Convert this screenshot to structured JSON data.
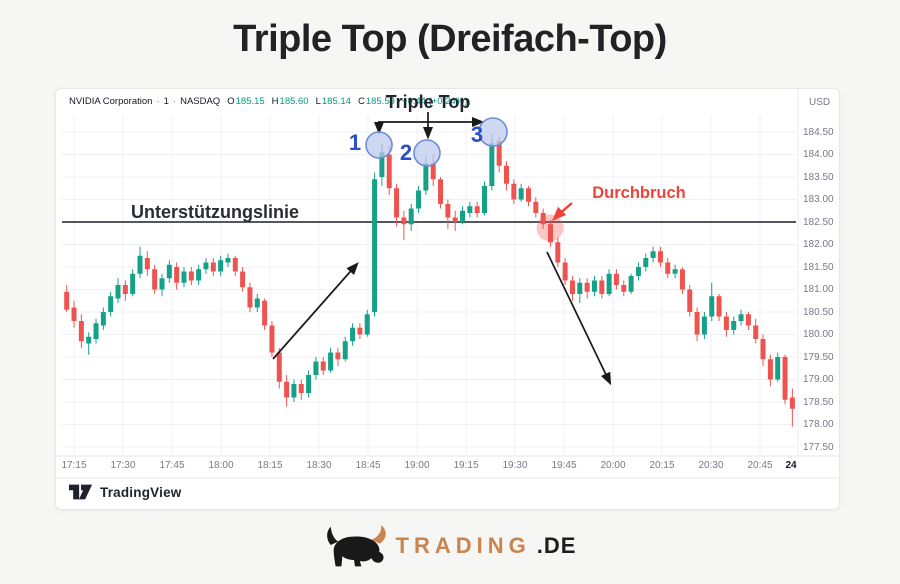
{
  "page": {
    "title": "Triple Top (Dreifach-Top)"
  },
  "chart": {
    "legend": {
      "symbol": "NVIDIA Corporation",
      "separator": "·",
      "interval": "1",
      "exchange": "NASDAQ",
      "open_label": "O",
      "open": "185.15",
      "high_label": "H",
      "high": "185.60",
      "low_label": "L",
      "low": "185.14",
      "close_label": "C",
      "close": "185.59",
      "change": "+0.44 (+0.24%)"
    },
    "price_axis_currency": "USD",
    "annotations": {
      "support": "Unterstützungslinie",
      "pattern": "Triple Top",
      "breakout": "Durchbruch",
      "peaks": [
        "1",
        "2",
        "3"
      ]
    },
    "attribution": "TradingView"
  },
  "footer": {
    "brand": "TRADING",
    "brand_tld": ".DE"
  },
  "colors": {
    "up": "#15a188",
    "down": "#ef5350",
    "support_line": "#3c3f46",
    "grid": "#eef0f3",
    "divider": "#e4e6ea",
    "axis_text": "#787b86",
    "arrow_black": "#1a1a1a",
    "breakout_red": "#ee443b",
    "peak_blue": "#2b4fc4",
    "circle_fill": "#bcc9ee",
    "circle_stroke": "#6d8cd9"
  },
  "chart_data": {
    "type": "candlestick",
    "title": "Triple Top (Dreifach-Top)",
    "instrument": "NVIDIA Corporation",
    "interval": "1",
    "exchange": "NASDAQ",
    "currency": "USD",
    "last_ohlc": {
      "open": 185.15,
      "high": 185.6,
      "low": 185.14,
      "close": 185.59,
      "change": "+0.44 (+0.24%)"
    },
    "support_level": 182.5,
    "grid": true,
    "ylim": [
      177.4,
      185.35
    ],
    "price_axis_labels": [
      "184.50",
      "184.00",
      "183.50",
      "183.00",
      "182.50",
      "182.00",
      "181.50",
      "181.00",
      "180.50",
      "180.00",
      "179.50",
      "179.00",
      "178.50",
      "178.00",
      "177.50"
    ],
    "time_axis_labels": [
      "17:15",
      "17:30",
      "17:45",
      "18:00",
      "18:15",
      "18:30",
      "18:45",
      "19:00",
      "19:15",
      "19:30",
      "19:45",
      "20:00",
      "20:15",
      "20:30",
      "20:45",
      "24"
    ],
    "annotated_peaks": [
      {
        "label": "1",
        "price": 184.25
      },
      {
        "label": "2",
        "price": 183.95
      },
      {
        "label": "3",
        "price": 184.45
      }
    ],
    "breakout_price": 182.4,
    "candles_ohlc": [
      [
        180.95,
        181.1,
        180.5,
        180.55
      ],
      [
        180.6,
        180.75,
        180.15,
        180.3
      ],
      [
        180.3,
        180.45,
        179.7,
        179.85
      ],
      [
        179.8,
        180.05,
        179.55,
        179.95
      ],
      [
        179.9,
        180.35,
        179.8,
        180.25
      ],
      [
        180.2,
        180.6,
        180.1,
        180.5
      ],
      [
        180.5,
        180.95,
        180.4,
        180.85
      ],
      [
        180.8,
        181.25,
        180.7,
        181.1
      ],
      [
        181.1,
        181.2,
        180.75,
        180.9
      ],
      [
        180.9,
        181.45,
        180.85,
        181.35
      ],
      [
        181.35,
        181.95,
        181.25,
        181.75
      ],
      [
        181.7,
        181.85,
        181.3,
        181.45
      ],
      [
        181.45,
        181.55,
        180.9,
        181.0
      ],
      [
        181.0,
        181.35,
        180.85,
        181.25
      ],
      [
        181.25,
        181.65,
        181.15,
        181.55
      ],
      [
        181.5,
        181.6,
        181.0,
        181.15
      ],
      [
        181.15,
        181.5,
        181.05,
        181.4
      ],
      [
        181.4,
        181.5,
        181.1,
        181.2
      ],
      [
        181.2,
        181.55,
        181.1,
        181.45
      ],
      [
        181.45,
        181.7,
        181.35,
        181.6
      ],
      [
        181.6,
        181.7,
        181.3,
        181.4
      ],
      [
        181.4,
        181.75,
        181.3,
        181.65
      ],
      [
        181.6,
        181.8,
        181.5,
        181.7
      ],
      [
        181.7,
        181.75,
        181.3,
        181.4
      ],
      [
        181.4,
        181.5,
        180.95,
        181.05
      ],
      [
        181.05,
        181.15,
        180.5,
        180.6
      ],
      [
        180.6,
        180.9,
        180.5,
        180.8
      ],
      [
        180.75,
        180.8,
        180.1,
        180.2
      ],
      [
        180.2,
        180.3,
        179.5,
        179.6
      ],
      [
        179.6,
        179.7,
        178.8,
        178.95
      ],
      [
        178.95,
        179.1,
        178.4,
        178.6
      ],
      [
        178.6,
        179.0,
        178.5,
        178.9
      ],
      [
        178.9,
        179.0,
        178.55,
        178.7
      ],
      [
        178.7,
        179.2,
        178.6,
        179.1
      ],
      [
        179.1,
        179.5,
        179.0,
        179.4
      ],
      [
        179.4,
        179.5,
        179.1,
        179.2
      ],
      [
        179.2,
        179.7,
        179.15,
        179.6
      ],
      [
        179.6,
        179.7,
        179.3,
        179.45
      ],
      [
        179.45,
        179.95,
        179.4,
        179.85
      ],
      [
        179.85,
        180.25,
        179.75,
        180.15
      ],
      [
        180.15,
        180.25,
        179.9,
        180.0
      ],
      [
        180.0,
        180.55,
        179.95,
        180.45
      ],
      [
        180.5,
        183.6,
        180.4,
        183.45
      ],
      [
        183.5,
        184.25,
        183.3,
        184.05
      ],
      [
        184.0,
        184.2,
        183.1,
        183.25
      ],
      [
        183.25,
        183.35,
        182.4,
        182.6
      ],
      [
        182.6,
        182.75,
        182.1,
        182.45
      ],
      [
        182.45,
        182.9,
        182.3,
        182.8
      ],
      [
        182.8,
        183.3,
        182.7,
        183.2
      ],
      [
        183.2,
        183.95,
        183.1,
        183.8
      ],
      [
        183.8,
        184.0,
        183.3,
        183.45
      ],
      [
        183.45,
        183.5,
        182.8,
        182.9
      ],
      [
        182.9,
        183.0,
        182.35,
        182.6
      ],
      [
        182.6,
        182.75,
        182.3,
        182.5
      ],
      [
        182.5,
        182.85,
        182.45,
        182.75
      ],
      [
        182.7,
        182.95,
        182.6,
        182.85
      ],
      [
        182.85,
        182.95,
        182.6,
        182.7
      ],
      [
        182.7,
        183.4,
        182.65,
        183.3
      ],
      [
        183.3,
        184.45,
        183.2,
        184.25
      ],
      [
        184.3,
        184.4,
        183.6,
        183.75
      ],
      [
        183.75,
        183.85,
        183.2,
        183.35
      ],
      [
        183.35,
        183.45,
        182.9,
        183.0
      ],
      [
        183.0,
        183.35,
        182.95,
        183.25
      ],
      [
        183.25,
        183.3,
        182.85,
        182.95
      ],
      [
        182.95,
        183.05,
        182.6,
        182.7
      ],
      [
        182.7,
        182.8,
        182.35,
        182.45
      ],
      [
        182.45,
        182.55,
        181.95,
        182.05
      ],
      [
        182.05,
        182.15,
        181.5,
        181.6
      ],
      [
        181.6,
        181.7,
        181.1,
        181.2
      ],
      [
        181.2,
        181.3,
        180.75,
        180.9
      ],
      [
        180.9,
        181.25,
        180.7,
        181.15
      ],
      [
        181.15,
        181.25,
        180.8,
        180.95
      ],
      [
        180.95,
        181.3,
        180.85,
        181.2
      ],
      [
        181.2,
        181.3,
        180.8,
        180.9
      ],
      [
        180.9,
        181.45,
        180.85,
        181.35
      ],
      [
        181.35,
        181.45,
        181.0,
        181.1
      ],
      [
        181.1,
        181.2,
        180.85,
        180.95
      ],
      [
        180.95,
        181.35,
        180.9,
        181.3
      ],
      [
        181.3,
        181.6,
        181.2,
        181.5
      ],
      [
        181.5,
        181.8,
        181.4,
        181.7
      ],
      [
        181.7,
        181.95,
        181.6,
        181.85
      ],
      [
        181.85,
        181.95,
        181.5,
        181.6
      ],
      [
        181.6,
        181.7,
        181.25,
        181.35
      ],
      [
        181.35,
        181.55,
        181.25,
        181.45
      ],
      [
        181.45,
        181.5,
        180.9,
        181.0
      ],
      [
        181.0,
        181.1,
        180.4,
        180.5
      ],
      [
        180.5,
        180.6,
        179.85,
        180.0
      ],
      [
        180.0,
        180.5,
        179.9,
        180.4
      ],
      [
        180.4,
        181.15,
        180.3,
        180.85
      ],
      [
        180.85,
        180.9,
        180.3,
        180.4
      ],
      [
        180.4,
        180.5,
        179.95,
        180.1
      ],
      [
        180.1,
        180.4,
        180.0,
        180.3
      ],
      [
        180.3,
        180.55,
        180.2,
        180.45
      ],
      [
        180.45,
        180.5,
        180.1,
        180.2
      ],
      [
        180.2,
        180.35,
        179.8,
        179.9
      ],
      [
        179.9,
        180.0,
        179.3,
        179.45
      ],
      [
        179.45,
        179.55,
        178.85,
        179.0
      ],
      [
        179.0,
        179.6,
        178.95,
        179.5
      ],
      [
        179.5,
        179.55,
        178.45,
        178.55
      ],
      [
        178.6,
        178.8,
        177.95,
        178.35
      ]
    ]
  }
}
